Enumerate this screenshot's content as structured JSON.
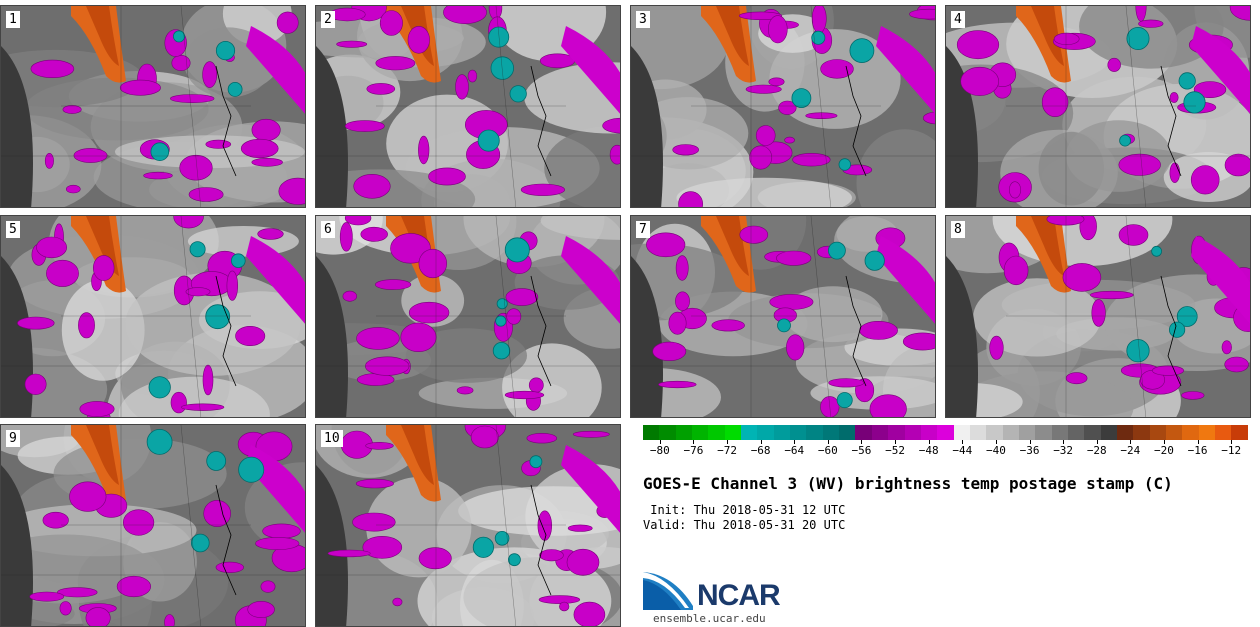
{
  "panels": [
    {
      "label": "1"
    },
    {
      "label": "2"
    },
    {
      "label": "3"
    },
    {
      "label": "4"
    },
    {
      "label": "5"
    },
    {
      "label": "6"
    },
    {
      "label": "7"
    },
    {
      "label": "8"
    },
    {
      "label": "9"
    },
    {
      "label": "10"
    }
  ],
  "colorbar": {
    "colors": [
      "#007a00",
      "#008c00",
      "#00a000",
      "#00b400",
      "#00c800",
      "#00dc00",
      "#00b4b4",
      "#00a8a8",
      "#009c9c",
      "#009090",
      "#008484",
      "#007878",
      "#006c6c",
      "#780078",
      "#8c008c",
      "#a000a0",
      "#b400b4",
      "#c800c8",
      "#dc00dc",
      "#f0f0f0",
      "#dcdcdc",
      "#c8c8c8",
      "#b4b4b4",
      "#a0a0a0",
      "#8c8c8c",
      "#787878",
      "#646464",
      "#505050",
      "#3c3c3c",
      "#6e2a10",
      "#8c3810",
      "#a84810",
      "#c45810",
      "#e06810",
      "#f07810",
      "#e85a10",
      "#c83c08"
    ],
    "ticks": [
      "-80",
      "-76",
      "-72",
      "-68",
      "-64",
      "-60",
      "-56",
      "-52",
      "-48",
      "-44",
      "-40",
      "-36",
      "-32",
      "-28",
      "-24",
      "-20",
      "-16",
      "-12"
    ]
  },
  "title": "GOES-E Channel 3 (WV) brightness temp postage stamp (C)",
  "init": "Init: Thu 2018-05-31 12 UTC",
  "valid": "Valid: Thu 2018-05-31 20 UTC",
  "logo_text": "NCAR",
  "url": "ensemble.ucar.edu"
}
